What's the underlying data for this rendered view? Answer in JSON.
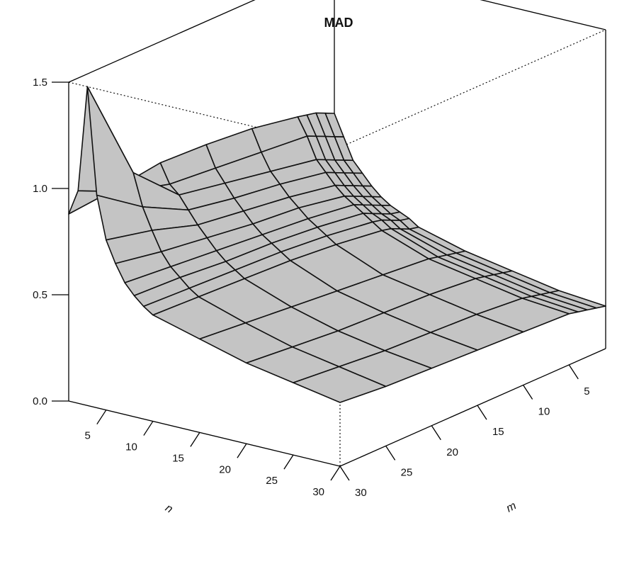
{
  "chart_data": {
    "type": "surface",
    "title": "MAD",
    "xlabel": "n",
    "ylabel": "m",
    "zlim": [
      0,
      1.5
    ],
    "z_ticks": [
      "0.0",
      "0.5",
      "1.0",
      "1.5"
    ],
    "n_ticks": [
      "5",
      "10",
      "15",
      "20",
      "25",
      "30"
    ],
    "m_ticks": [
      "5",
      "10",
      "15",
      "20",
      "25",
      "30"
    ],
    "n": [
      1,
      2,
      3,
      4,
      5,
      6,
      7,
      8,
      9,
      10,
      15,
      20,
      25,
      30
    ],
    "m": [
      1,
      2,
      3,
      4,
      5,
      10,
      15,
      20,
      25,
      30
    ],
    "z": [
      [
        0.8,
        0.82,
        0.84,
        0.85,
        0.86,
        0.9,
        0.92,
        0.93,
        0.9,
        0.88
      ],
      [
        0.7,
        0.72,
        0.74,
        0.76,
        0.78,
        0.8,
        0.82,
        0.84,
        0.9,
        1.0
      ],
      [
        0.6,
        0.62,
        0.64,
        0.66,
        0.68,
        0.72,
        0.76,
        0.8,
        1.0,
        1.5
      ],
      [
        0.55,
        0.57,
        0.59,
        0.61,
        0.63,
        0.67,
        0.7,
        0.74,
        0.85,
        1.0
      ],
      [
        0.5,
        0.52,
        0.54,
        0.56,
        0.58,
        0.62,
        0.65,
        0.68,
        0.75,
        0.8
      ],
      [
        0.46,
        0.48,
        0.5,
        0.52,
        0.54,
        0.58,
        0.6,
        0.63,
        0.66,
        0.7
      ],
      [
        0.43,
        0.45,
        0.47,
        0.49,
        0.51,
        0.54,
        0.56,
        0.58,
        0.6,
        0.62
      ],
      [
        0.41,
        0.42,
        0.44,
        0.46,
        0.48,
        0.51,
        0.53,
        0.54,
        0.56,
        0.57
      ],
      [
        0.39,
        0.4,
        0.42,
        0.44,
        0.45,
        0.48,
        0.5,
        0.51,
        0.52,
        0.53
      ],
      [
        0.36,
        0.37,
        0.39,
        0.41,
        0.42,
        0.45,
        0.47,
        0.48,
        0.49,
        0.5
      ],
      [
        0.3,
        0.31,
        0.32,
        0.33,
        0.34,
        0.36,
        0.38,
        0.4,
        0.42,
        0.44
      ],
      [
        0.26,
        0.27,
        0.28,
        0.29,
        0.3,
        0.32,
        0.33,
        0.34,
        0.36,
        0.38
      ],
      [
        0.22,
        0.23,
        0.24,
        0.25,
        0.26,
        0.28,
        0.29,
        0.3,
        0.32,
        0.34
      ],
      [
        0.2,
        0.21,
        0.22,
        0.23,
        0.24,
        0.25,
        0.26,
        0.27,
        0.28,
        0.3
      ]
    ],
    "surface_color": "#c4c4c4",
    "grid": false
  }
}
